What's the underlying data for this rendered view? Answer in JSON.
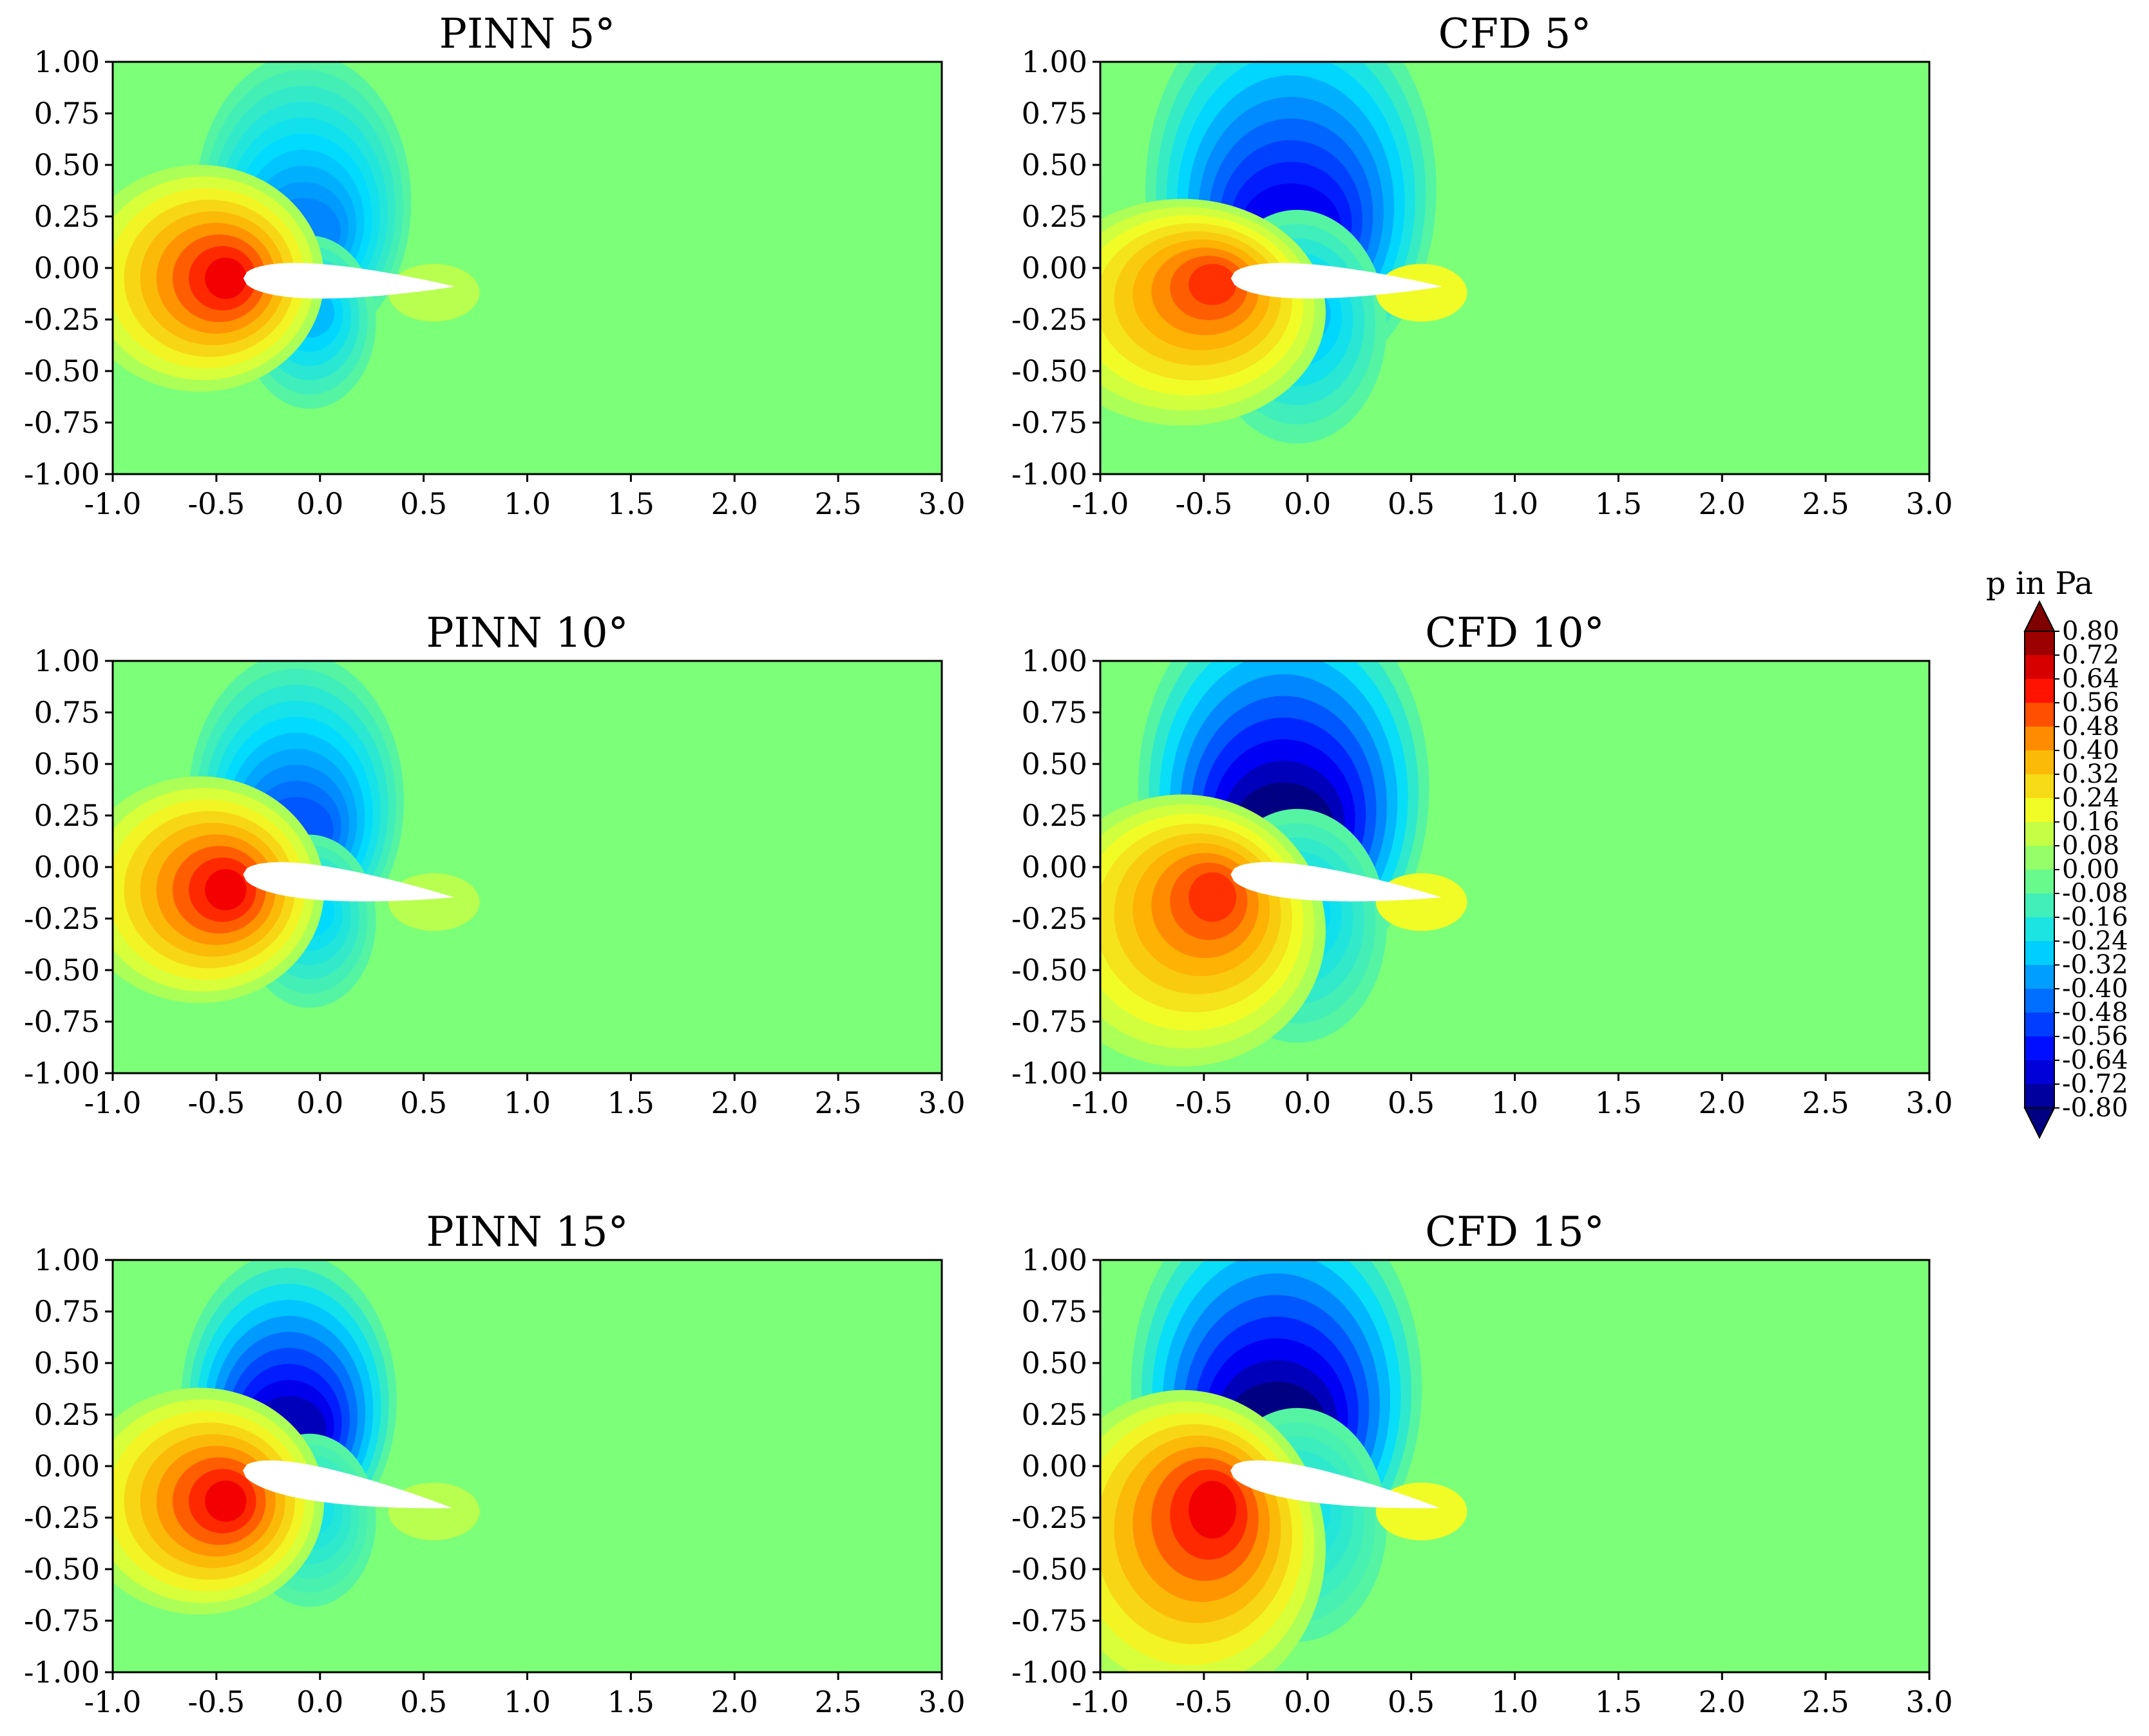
{
  "chart_data": {
    "type": "heatmap",
    "x_ticks": [
      "-1.0",
      "-0.5",
      "0.0",
      "0.5",
      "1.0",
      "1.5",
      "2.0",
      "2.5",
      "3.0"
    ],
    "y_ticks": [
      "1.00",
      "0.75",
      "0.50",
      "0.25",
      "0.00",
      "-0.25",
      "-0.50",
      "-0.75",
      "-1.00"
    ],
    "xlim": [
      -1.0,
      3.0
    ],
    "ylim": [
      -1.0,
      1.0
    ],
    "panels": [
      {
        "title": "PINN 5°",
        "source": "PINN",
        "angle_deg": 5,
        "min_pressure": -0.4,
        "max_pressure": 0.64
      },
      {
        "title": "CFD 5°",
        "source": "CFD",
        "angle_deg": 5,
        "min_pressure": -0.64,
        "max_pressure": 0.56
      },
      {
        "title": "PINN 10°",
        "source": "PINN",
        "angle_deg": 10,
        "min_pressure": -0.48,
        "max_pressure": 0.64
      },
      {
        "title": "CFD 10°",
        "source": "CFD",
        "angle_deg": 10,
        "min_pressure": -0.8,
        "max_pressure": 0.56
      },
      {
        "title": "PINN 15°",
        "source": "PINN",
        "angle_deg": 15,
        "min_pressure": -0.72,
        "max_pressure": 0.64
      },
      {
        "title": "CFD 15°",
        "source": "CFD",
        "angle_deg": 15,
        "min_pressure": -0.8,
        "max_pressure": 0.64
      }
    ],
    "colorbar": {
      "title": "p in Pa",
      "colormap": "jet",
      "range": [
        -0.8,
        0.8
      ],
      "extend": "both",
      "ticks": [
        "0.80",
        "0.72",
        "0.64",
        "0.56",
        "0.48",
        "0.40",
        "0.32",
        "0.24",
        "0.16",
        "0.08",
        "0.00",
        "-0.08",
        "-0.16",
        "-0.24",
        "-0.32",
        "-0.40",
        "-0.48",
        "-0.56",
        "-0.64",
        "-0.72",
        "-0.80"
      ]
    }
  }
}
